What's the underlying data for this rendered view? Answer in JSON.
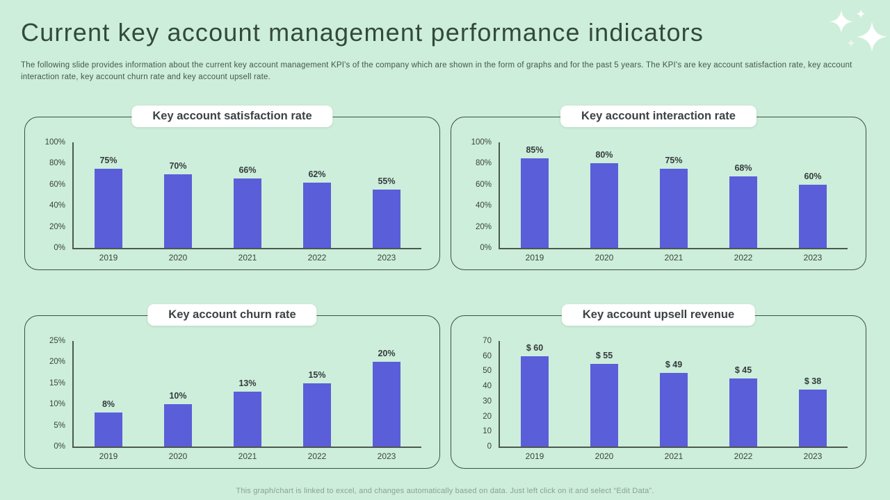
{
  "page": {
    "title": "Current key account management performance indicators",
    "subtitle": "The following slide provides information about the current key account management KPI's of the company which are shown in the form of graphs and for the past 5 years. The KPI's are key account satisfaction rate, key account interaction rate, key account churn rate and key account upsell rate.",
    "footer": "This graph/chart is linked to excel, and changes automatically based on data. Just left click on it and select “Edit Data”."
  },
  "colors": {
    "background": "#cdeeda",
    "bar": "#5a5ed9",
    "panel_border": "#3c4f43",
    "heading": "#33493c",
    "chart_title": "#3b4245",
    "axis_line": "#4d574f",
    "tick_text": "#39433c",
    "footer_text": "#8ba194",
    "pill_background": "#ffffff",
    "sparkle": "#ffffff"
  },
  "chart_data": [
    {
      "type": "bar",
      "title": "Key account satisfaction rate",
      "categories": [
        "2019",
        "2020",
        "2021",
        "2022",
        "2023"
      ],
      "values": [
        75,
        70,
        66,
        62,
        55
      ],
      "labels": [
        "75%",
        "70%",
        "66%",
        "62%",
        "55%"
      ],
      "ytick_labels": [
        "100%",
        "80%",
        "60%",
        "40%",
        "20%",
        "0%"
      ],
      "ylim": [
        0,
        100
      ],
      "xlabel": "",
      "ylabel": "",
      "grid": false,
      "legend": false
    },
    {
      "type": "bar",
      "title": "Key account interaction rate",
      "categories": [
        "2019",
        "2020",
        "2021",
        "2022",
        "2023"
      ],
      "values": [
        85,
        80,
        75,
        68,
        60
      ],
      "labels": [
        "85%",
        "80%",
        "75%",
        "68%",
        "60%"
      ],
      "ytick_labels": [
        "100%",
        "80%",
        "60%",
        "40%",
        "20%",
        "0%"
      ],
      "ylim": [
        0,
        100
      ],
      "xlabel": "",
      "ylabel": "",
      "grid": false,
      "legend": false
    },
    {
      "type": "bar",
      "title": "Key account churn rate",
      "categories": [
        "2019",
        "2020",
        "2021",
        "2022",
        "2023"
      ],
      "values": [
        8,
        10,
        13,
        15,
        20
      ],
      "labels": [
        "8%",
        "10%",
        "13%",
        "15%",
        "20%"
      ],
      "ytick_labels": [
        "25%",
        "20%",
        "15%",
        "10%",
        "5%",
        "0%"
      ],
      "ylim": [
        0,
        25
      ],
      "xlabel": "",
      "ylabel": "",
      "grid": false,
      "legend": false
    },
    {
      "type": "bar",
      "title": "Key account upsell revenue",
      "categories": [
        "2019",
        "2020",
        "2021",
        "2022",
        "2023"
      ],
      "values": [
        60,
        55,
        49,
        45,
        38
      ],
      "labels": [
        "$ 60",
        "$ 55",
        "$ 49",
        "$ 45",
        "$ 38"
      ],
      "ytick_labels": [
        "70",
        "60",
        "50",
        "40",
        "30",
        "20",
        "10",
        "0"
      ],
      "ylim": [
        0,
        70
      ],
      "xlabel": "",
      "ylabel": "",
      "grid": false,
      "legend": false
    }
  ]
}
